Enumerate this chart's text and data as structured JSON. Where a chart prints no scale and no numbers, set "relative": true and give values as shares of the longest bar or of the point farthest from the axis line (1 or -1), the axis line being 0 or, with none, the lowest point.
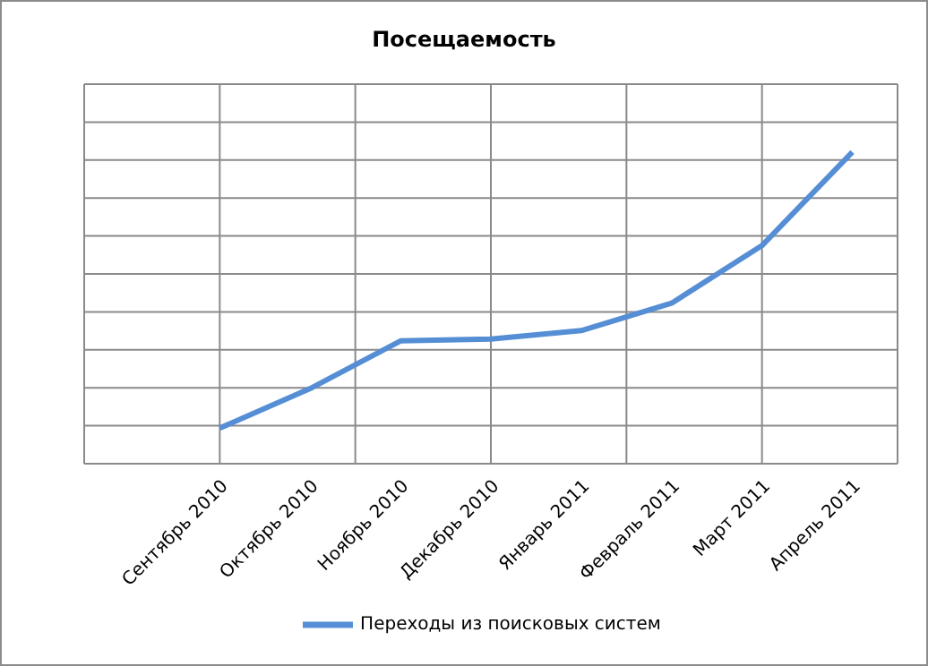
{
  "chart_data": {
    "type": "line",
    "title": "Посещаемость",
    "categories": [
      "Сентябрь 2010",
      "Октябрь 2010",
      "Ноябрь 2010",
      "Декабрь 2010",
      "Январь 2011",
      "Февраль 2011",
      "Март 2011",
      "Апрель 2011"
    ],
    "relative": true,
    "series": [
      {
        "name": "Переходы из поисковых систем",
        "color": "#558ed5",
        "values": [
          0.114,
          0.241,
          0.394,
          0.4,
          0.427,
          0.515,
          0.7,
          1
        ]
      }
    ],
    "grid": true,
    "legend": "bottom",
    "marker": "none"
  }
}
